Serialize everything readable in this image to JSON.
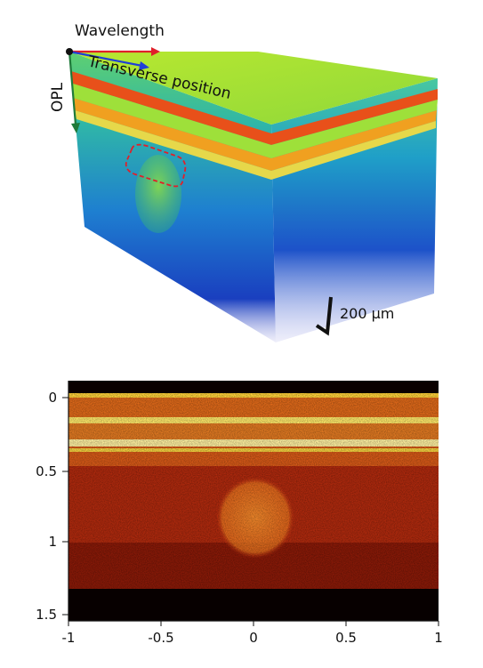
{
  "volume": {
    "axis_wavelength": "Wavelength",
    "axis_transverse": "Transverse position",
    "axis_opl": "OPL",
    "scale_label": "200 μm",
    "colors": {
      "wavelength_arrow": "#e0202a",
      "transverse_arrow": "#1f3fd6",
      "opl_arrow": "#1f7a3a",
      "roi_box": "#e0202a"
    }
  },
  "bscan": {
    "x_ticks": [
      "-1",
      "-0.5",
      "0",
      "0.5",
      "1"
    ],
    "y_ticks": [
      "0",
      "0.5",
      "1",
      "1.5"
    ],
    "colormap": "hot"
  }
}
